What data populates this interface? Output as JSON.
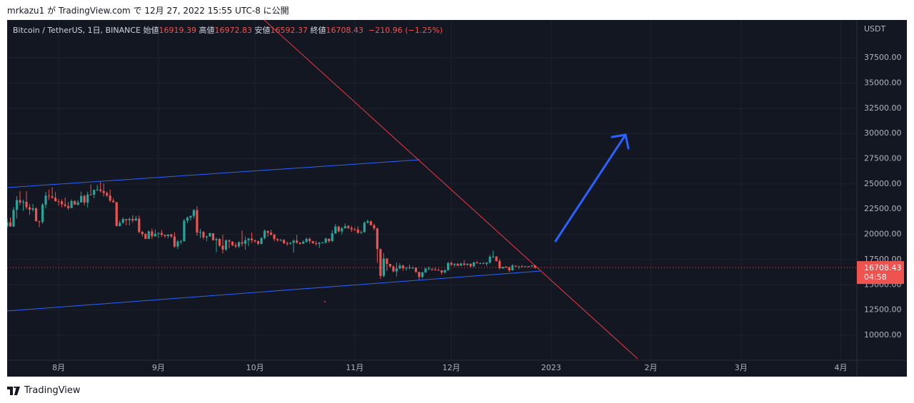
{
  "header": {
    "text": "mrkazu1 が TradingView.com で 12月 27, 2022 15:55 UTC-8 に公開"
  },
  "footer": {
    "brand": "TradingView"
  },
  "chart_data": {
    "type": "candlestick",
    "symbol": "Bitcoin / TetherUS, 1日, BINANCE",
    "legend_labels": {
      "open": "始値",
      "high": "高値",
      "low": "安値",
      "close": "終値"
    },
    "change": "−210.96 (−1.25%)",
    "y_axis_label": "USDT",
    "countdown": "04:58",
    "up_color": "#26a69a",
    "down_color": "#ef5350",
    "grid": true,
    "xlim": [
      "2022-07-16",
      "2023-04-06"
    ],
    "xticks": [
      {
        "value": "2022-08-01",
        "label": "8月"
      },
      {
        "value": "2022-09-01",
        "label": "9月"
      },
      {
        "value": "2022-10-01",
        "label": "10月"
      },
      {
        "value": "2022-11-01",
        "label": "11月"
      },
      {
        "value": "2022-12-01",
        "label": "12月"
      },
      {
        "value": "2023-01-01",
        "label": "2023"
      },
      {
        "value": "2023-02-01",
        "label": "2月"
      },
      {
        "value": "2023-03-01",
        "label": "3月"
      },
      {
        "value": "2023-04-01",
        "label": "4月"
      }
    ],
    "ylim": [
      7525,
      41250
    ],
    "yticks": [
      {
        "value": 10000,
        "label": "10000.00"
      },
      {
        "value": 12500,
        "label": "12500.00"
      },
      {
        "value": 15000,
        "label": "15000.00"
      },
      {
        "value": 17500,
        "label": "17500.00"
      },
      {
        "value": 20000,
        "label": "20000.00"
      },
      {
        "value": 22500,
        "label": "22500.00"
      },
      {
        "value": 25000,
        "label": "25000.00"
      },
      {
        "value": 27500,
        "label": "27500.00"
      },
      {
        "value": 30000,
        "label": "30000.00"
      },
      {
        "value": 32500,
        "label": "32500.00"
      },
      {
        "value": 35000,
        "label": "35000.00"
      },
      {
        "value": 37500,
        "label": "37500.00"
      }
    ],
    "x": [
      "2022-07-16",
      "2022-07-17",
      "2022-07-18",
      "2022-07-19",
      "2022-07-20",
      "2022-07-21",
      "2022-07-22",
      "2022-07-23",
      "2022-07-24",
      "2022-07-25",
      "2022-07-26",
      "2022-07-27",
      "2022-07-28",
      "2022-07-29",
      "2022-07-30",
      "2022-07-31",
      "2022-08-01",
      "2022-08-02",
      "2022-08-03",
      "2022-08-04",
      "2022-08-05",
      "2022-08-06",
      "2022-08-07",
      "2022-08-08",
      "2022-08-09",
      "2022-08-10",
      "2022-08-11",
      "2022-08-12",
      "2022-08-13",
      "2022-08-14",
      "2022-08-15",
      "2022-08-16",
      "2022-08-17",
      "2022-08-18",
      "2022-08-19",
      "2022-08-20",
      "2022-08-21",
      "2022-08-22",
      "2022-08-23",
      "2022-08-24",
      "2022-08-25",
      "2022-08-26",
      "2022-08-27",
      "2022-08-28",
      "2022-08-29",
      "2022-08-30",
      "2022-08-31",
      "2022-09-01",
      "2022-09-02",
      "2022-09-03",
      "2022-09-04",
      "2022-09-05",
      "2022-09-06",
      "2022-09-07",
      "2022-09-08",
      "2022-09-09",
      "2022-09-10",
      "2022-09-11",
      "2022-09-12",
      "2022-09-13",
      "2022-09-14",
      "2022-09-15",
      "2022-09-16",
      "2022-09-17",
      "2022-09-18",
      "2022-09-19",
      "2022-09-20",
      "2022-09-21",
      "2022-09-22",
      "2022-09-23",
      "2022-09-24",
      "2022-09-25",
      "2022-09-26",
      "2022-09-27",
      "2022-09-28",
      "2022-09-29",
      "2022-09-30",
      "2022-10-01",
      "2022-10-02",
      "2022-10-03",
      "2022-10-04",
      "2022-10-05",
      "2022-10-06",
      "2022-10-07",
      "2022-10-08",
      "2022-10-09",
      "2022-10-10",
      "2022-10-11",
      "2022-10-12",
      "2022-10-13",
      "2022-10-14",
      "2022-10-15",
      "2022-10-16",
      "2022-10-17",
      "2022-10-18",
      "2022-10-19",
      "2022-10-20",
      "2022-10-21",
      "2022-10-22",
      "2022-10-23",
      "2022-10-24",
      "2022-10-25",
      "2022-10-26",
      "2022-10-27",
      "2022-10-28",
      "2022-10-29",
      "2022-10-30",
      "2022-10-31",
      "2022-11-01",
      "2022-11-02",
      "2022-11-03",
      "2022-11-04",
      "2022-11-05",
      "2022-11-06",
      "2022-11-07",
      "2022-11-08",
      "2022-11-09",
      "2022-11-10",
      "2022-11-11",
      "2022-11-12",
      "2022-11-13",
      "2022-11-14",
      "2022-11-15",
      "2022-11-16",
      "2022-11-17",
      "2022-11-18",
      "2022-11-19",
      "2022-11-20",
      "2022-11-21",
      "2022-11-22",
      "2022-11-23",
      "2022-11-24",
      "2022-11-25",
      "2022-11-26",
      "2022-11-27",
      "2022-11-28",
      "2022-11-29",
      "2022-11-30",
      "2022-12-01",
      "2022-12-02",
      "2022-12-03",
      "2022-12-04",
      "2022-12-05",
      "2022-12-06",
      "2022-12-07",
      "2022-12-08",
      "2022-12-09",
      "2022-12-10",
      "2022-12-11",
      "2022-12-12",
      "2022-12-13",
      "2022-12-14",
      "2022-12-15",
      "2022-12-16",
      "2022-12-17",
      "2022-12-18",
      "2022-12-19",
      "2022-12-20",
      "2022-12-21",
      "2022-12-22",
      "2022-12-23",
      "2022-12-24",
      "2022-12-25",
      "2022-12-26",
      "2022-12-27"
    ],
    "open": [
      20800,
      21200,
      20780,
      22430,
      23400,
      23150,
      23220,
      22680,
      22450,
      22580,
      21310,
      21240,
      22950,
      23840,
      23770,
      23640,
      23290,
      23270,
      22980,
      22820,
      22610,
      23310,
      22950,
      23170,
      23810,
      23150,
      23950,
      23940,
      24400,
      24440,
      24300,
      24100,
      23850,
      23340,
      23190,
      20830,
      21140,
      21520,
      21400,
      21530,
      21370,
      21560,
      20240,
      20040,
      19550,
      20290,
      19800,
      20050,
      20130,
      19950,
      19830,
      19990,
      19790,
      18790,
      19290,
      19320,
      21360,
      21650,
      21830,
      22400,
      20170,
      20230,
      19700,
      19800,
      20110,
      19420,
      19540,
      18880,
      18490,
      19400,
      19290,
      18920,
      18800,
      19220,
      19080,
      19410,
      19590,
      19420,
      19310,
      19060,
      19630,
      20340,
      20160,
      19960,
      19530,
      19420,
      19440,
      19130,
      19060,
      19150,
      19380,
      19180,
      19070,
      19260,
      19550,
      19330,
      19120,
      19040,
      19160,
      19200,
      19570,
      19330,
      20090,
      20770,
      20290,
      20600,
      20820,
      20630,
      20490,
      20480,
      20150,
      20210,
      21150,
      21300,
      20910,
      20590,
      18540,
      15880,
      17600,
      17070,
      16810,
      16330,
      16620,
      16900,
      16660,
      16690,
      16700,
      16700,
      16280,
      15780,
      16230,
      16600,
      16600,
      16520,
      16460,
      16430,
      16220,
      16440,
      17170,
      16980,
      17090,
      16890,
      17110,
      16970,
      17090,
      16840,
      17220,
      17130,
      17130,
      17090,
      17210,
      17780,
      17800,
      17360,
      16630,
      16780,
      16740,
      16440,
      16900,
      16820,
      16830,
      16780,
      16840,
      16830,
      16919.39
    ],
    "high": [
      21580,
      21680,
      22700,
      23800,
      24280,
      23430,
      24270,
      23000,
      23010,
      22680,
      21330,
      23100,
      24200,
      24440,
      24670,
      24190,
      23510,
      23470,
      23650,
      23220,
      23470,
      23350,
      23400,
      24240,
      23940,
      24230,
      24920,
      24450,
      24890,
      25210,
      25050,
      24250,
      24450,
      23600,
      23200,
      21380,
      21680,
      21520,
      21680,
      21900,
      21820,
      21870,
      20340,
      20140,
      20400,
      20580,
      20490,
      20200,
      20440,
      19960,
      20000,
      20060,
      20180,
      19460,
      19450,
      21540,
      21790,
      21860,
      22490,
      22800,
      20550,
      20330,
      19890,
      20190,
      20110,
      19690,
      19630,
      19960,
      19500,
      19500,
      19310,
      19180,
      19310,
      20380,
      19790,
      19650,
      20180,
      19480,
      19400,
      19720,
      20480,
      20370,
      20460,
      20060,
      19620,
      19560,
      19530,
      19270,
      19230,
      19510,
      19950,
      19230,
      19420,
      19670,
      19700,
      19350,
      19350,
      19250,
      19250,
      19690,
      19600,
      20410,
      21020,
      20870,
      20750,
      21080,
      20930,
      20840,
      20690,
      20800,
      20390,
      21300,
      21480,
      21370,
      21070,
      20670,
      18590,
      18150,
      17650,
      17070,
      16950,
      17190,
      17140,
      17000,
      16750,
      17000,
      16810,
      16750,
      16300,
      16280,
      16700,
      16810,
      16610,
      16700,
      16610,
      16480,
      16530,
      17250,
      17320,
      17110,
      17150,
      17200,
      17430,
      17110,
      17130,
      17300,
      17360,
      17230,
      17270,
      17240,
      17960,
      18390,
      17850,
      17530,
      16800,
      16870,
      16820,
      17060,
      16920,
      16870,
      16960,
      16870,
      16860,
      16940,
      16972.83
    ],
    "low": [
      20620,
      20760,
      20750,
      21580,
      22900,
      22340,
      22500,
      21930,
      22260,
      21250,
      20710,
      21040,
      22580,
      23410,
      23510,
      23230,
      22850,
      22670,
      22680,
      22430,
      22590,
      22920,
      22840,
      23150,
      22870,
      22660,
      23850,
      23580,
      24290,
      24160,
      23770,
      23690,
      23180,
      23110,
      20780,
      20770,
      21060,
      20890,
      20890,
      21150,
      21310,
      20110,
      19800,
      19530,
      19550,
      19540,
      19800,
      19650,
      19750,
      19660,
      19600,
      19640,
      18650,
      18540,
      19010,
      19290,
      21110,
      21360,
      21550,
      19860,
      19620,
      19500,
      19320,
      19750,
      19380,
      18230,
      18750,
      18120,
      18360,
      18620,
      18810,
      18630,
      18680,
      18820,
      18470,
      18850,
      19160,
      19160,
      18920,
      19000,
      19500,
      19740,
      19880,
      19340,
      19270,
      19320,
      19030,
      18860,
      18990,
      18190,
      19070,
      18980,
      19060,
      19160,
      19100,
      19070,
      18900,
      18650,
      19110,
      19070,
      19160,
      19240,
      20060,
      20200,
      20000,
      20570,
      20520,
      20240,
      20350,
      20060,
      20050,
      20180,
      21080,
      20870,
      20390,
      17170,
      15590,
      15750,
      16360,
      16750,
      16230,
      15820,
      16550,
      16400,
      16410,
      16550,
      16570,
      16180,
      15480,
      15620,
      16170,
      16460,
      16360,
      16400,
      16400,
      16000,
      16110,
      16440,
      16850,
      16790,
      16860,
      16880,
      16880,
      16910,
      16680,
      16740,
      17100,
      17090,
      17070,
      16870,
      17090,
      17660,
      17280,
      16530,
      16580,
      16670,
      16260,
      16400,
      16750,
      16560,
      16750,
      16780,
      16730,
      16780,
      16592.37
    ],
    "close": [
      21200,
      20780,
      22430,
      23400,
      23150,
      23220,
      22680,
      22450,
      22580,
      21310,
      21240,
      22950,
      23840,
      23770,
      23640,
      23290,
      23270,
      22980,
      22820,
      22610,
      23310,
      22950,
      23170,
      23810,
      23150,
      23950,
      23940,
      24400,
      24440,
      24300,
      24100,
      23850,
      23340,
      23190,
      20830,
      21140,
      21520,
      21400,
      21530,
      21370,
      21560,
      20240,
      20040,
      19550,
      20290,
      19800,
      20050,
      20130,
      19950,
      19830,
      19990,
      19790,
      18790,
      19290,
      19320,
      21360,
      21650,
      21830,
      22400,
      20170,
      20230,
      19700,
      19800,
      20110,
      19420,
      19540,
      18880,
      18490,
      19400,
      19290,
      18920,
      18800,
      19220,
      19080,
      19410,
      19590,
      19420,
      19310,
      19060,
      19630,
      20340,
      20160,
      19960,
      19530,
      19420,
      19440,
      19130,
      19060,
      19150,
      19380,
      19180,
      19070,
      19260,
      19550,
      19330,
      19120,
      19040,
      19160,
      19200,
      19570,
      19330,
      20090,
      20770,
      20290,
      20600,
      20820,
      20630,
      20490,
      20480,
      20150,
      20210,
      21150,
      21300,
      20910,
      20590,
      18540,
      15880,
      17600,
      17070,
      16810,
      16330,
      16620,
      16900,
      16660,
      16690,
      16700,
      16700,
      16280,
      15780,
      16230,
      16600,
      16600,
      16520,
      16460,
      16430,
      16220,
      16440,
      17170,
      16980,
      17090,
      16890,
      17110,
      16970,
      17090,
      16840,
      17220,
      17130,
      17130,
      17090,
      17210,
      17780,
      17800,
      17360,
      16630,
      16780,
      16740,
      16440,
      16900,
      16820,
      16830,
      16780,
      16840,
      16830,
      16919.39,
      16708.43
    ]
  }
}
